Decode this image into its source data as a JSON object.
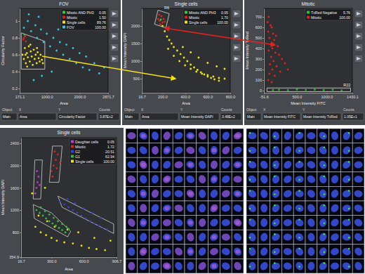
{
  "chart_data": [
    {
      "type": "scatter",
      "title": "FOV",
      "x_label": "Area",
      "y_label": "Circularity Factor",
      "xlim": [
        171.1,
        2871.7
      ],
      "xticks": [
        171.1,
        {
          "value": 1000,
          "label": "1000.0"
        },
        {
          "value": 2000,
          "label": "2000.0"
        },
        2871.7
      ],
      "ylim": [
        0.15,
        1.15
      ],
      "yticks": [
        0.2,
        0.4,
        0.6,
        0.8,
        1
      ],
      "series": [
        {
          "name": "Mitotic AND PH3",
          "percent": "0.05",
          "color": "#35c83a",
          "x": [
            320
          ],
          "values": [
            0.84
          ]
        },
        {
          "name": "Mitotic",
          "percent": "1.50",
          "color": "#e0231e",
          "x": [
            300,
            340,
            280,
            360
          ],
          "values": [
            0.8,
            0.82,
            0.78,
            0.76
          ]
        },
        {
          "name": "Single cells",
          "percent": "89.76",
          "color": "#f2e01a",
          "x": [
            260,
            300,
            330,
            360,
            390,
            420,
            450,
            480,
            510,
            540,
            570,
            600,
            630,
            660,
            690,
            720,
            750,
            780,
            810,
            850,
            880,
            400,
            500,
            700,
            350
          ],
          "values": [
            0.6,
            0.55,
            0.68,
            0.5,
            0.62,
            0.57,
            0.7,
            0.52,
            0.64,
            0.58,
            0.48,
            0.66,
            0.55,
            0.6,
            0.5,
            0.63,
            0.56,
            0.52,
            0.6,
            0.54,
            0.5,
            0.46,
            0.72,
            0.68,
            0.6
          ]
        },
        {
          "name": "FOV",
          "percent": "100.00",
          "color": "#35c8e0",
          "x": [
            300,
            420,
            520,
            650,
            700,
            820,
            900,
            1000,
            1100,
            1200,
            1300,
            1400,
            1500,
            1600,
            1700,
            1800,
            1900,
            2000,
            2100,
            2200,
            2300,
            2450,
            2600,
            2750,
            600,
            850,
            1150,
            450,
            750,
            1350
          ],
          "values": [
            0.92,
            1.0,
            0.88,
            0.95,
            0.8,
            0.9,
            0.75,
            0.85,
            0.7,
            0.8,
            0.65,
            0.75,
            0.6,
            0.72,
            0.55,
            0.68,
            0.5,
            0.62,
            0.45,
            0.58,
            0.42,
            0.5,
            0.38,
            0.45,
            0.3,
            0.35,
            0.4,
            1.08,
            1.05,
            0.9
          ]
        }
      ],
      "gates": [
        {
          "x": [
            220,
            940,
            940,
            220
          ],
          "y": [
            0.43,
            0.43,
            0.76,
            0.86
          ],
          "color": "#e0e0e0"
        }
      ],
      "controls": [
        {
          "label": "Object",
          "value": "Main"
        },
        {
          "label": "X",
          "value": "Area"
        },
        {
          "label": "Y",
          "value": "Circularity Factor"
        },
        {
          "label": "Counts",
          "value": "3.87E+2"
        }
      ]
    },
    {
      "type": "scatter",
      "title": "Single cells",
      "x_label": "Area",
      "y_label": "Mean Intensity DAPI",
      "xlim": [
        16.7,
        800
      ],
      "xticks": [
        16.7,
        {
          "value": 200,
          "label": "200.0"
        },
        {
          "value": 400,
          "label": "400.0"
        },
        {
          "value": 600,
          "label": "600.0"
        },
        {
          "value": 800,
          "label": "800.0"
        }
      ],
      "ylim": [
        100,
        2500
      ],
      "yticks": [
        500,
        1000,
        1500,
        2000
      ],
      "series": [
        {
          "name": "Mitotic AND PH3",
          "percent": "0.05",
          "color": "#35c83a",
          "x": [
            185
          ],
          "values": [
            2180
          ]
        },
        {
          "name": "Mitotic",
          "percent": "1.70",
          "color": "#e0231e",
          "x": [
            160,
            175,
            190,
            200,
            210,
            180,
            220,
            170
          ],
          "values": [
            2200,
            2150,
            2280,
            2100,
            2200,
            2050,
            2120,
            2320
          ]
        },
        {
          "name": "Single cells",
          "percent": "100.00",
          "color": "#f2e01a",
          "x": [
            200,
            220,
            240,
            260,
            280,
            300,
            330,
            360,
            390,
            420,
            450,
            480,
            510,
            540,
            570,
            600,
            630,
            660,
            700,
            250,
            300,
            350,
            400,
            450,
            500,
            550,
            600,
            650,
            700,
            750,
            380,
            450,
            520,
            600,
            680,
            750
          ],
          "values": [
            2000,
            1850,
            1700,
            1600,
            1500,
            1400,
            1300,
            1200,
            1100,
            1000,
            900,
            820,
            750,
            680,
            620,
            560,
            520,
            480,
            440,
            1350,
            1150,
            1000,
            880,
            780,
            700,
            640,
            600,
            560,
            520,
            500,
            1400,
            1250,
            1100,
            950,
            850,
            780
          ]
        }
      ],
      "gates": [
        {
          "label": "R6",
          "x": [
            130,
            230,
            260,
            160
          ],
          "y": [
            2050,
            1950,
            2350,
            2450
          ],
          "color": "#e0e0e0"
        }
      ],
      "controls": [
        {
          "label": "Object",
          "value": "Main"
        },
        {
          "label": "X",
          "value": "Area"
        },
        {
          "label": "Y",
          "value": "Mean Intensity DAPI"
        },
        {
          "label": "Counts",
          "value": "3.48E+2"
        }
      ]
    },
    {
      "type": "scatter",
      "title": "Mitotic",
      "x_label": "Mean Intensity FITC",
      "y_label": "Mean Intensity TxRed",
      "xlim": [
        -51.6,
        1430.1
      ],
      "xticks": [
        -51.6,
        {
          "value": 500,
          "label": "500.0"
        },
        {
          "value": 1000,
          "label": "1000.0"
        },
        1430.1
      ],
      "ylim": [
        -20,
        780
      ],
      "yticks": [
        0,
        100,
        200,
        300,
        400,
        500,
        600,
        700
      ],
      "series": [
        {
          "name": "TxRed Negative",
          "percent": "5.76",
          "color": "#30c030",
          "x": [
            100,
            200,
            350,
            500,
            650,
            800,
            950,
            1100,
            1250
          ],
          "values": [
            5,
            8,
            4,
            10,
            6,
            9,
            5,
            7,
            3
          ]
        },
        {
          "name": "Mitotic",
          "percent": "100.00",
          "color": "#e0231e",
          "x": [
            10,
            30,
            60,
            20,
            80,
            100,
            40,
            120,
            150,
            60,
            90,
            180,
            30,
            140,
            200,
            70,
            110,
            250,
            50,
            160,
            90,
            300,
            40,
            130,
            220,
            20,
            350,
            80
          ],
          "values": [
            650,
            700,
            620,
            560,
            600,
            540,
            500,
            480,
            520,
            440,
            400,
            420,
            380,
            360,
            340,
            320,
            280,
            300,
            250,
            230,
            200,
            260,
            160,
            140,
            180,
            100,
            200,
            80
          ]
        }
      ],
      "gates": [
        {
          "label": "R22",
          "x": [
            0,
            1400,
            1400,
            0
          ],
          "y": [
            -10,
            -10,
            25,
            25
          ],
          "color": "#e0e0e0"
        }
      ],
      "controls": [
        {
          "label": "Object",
          "value": "Main"
        },
        {
          "label": "X",
          "value": "Mean Intensity FITC"
        },
        {
          "label": "Y",
          "value": "Mean Intensity TxRed"
        },
        {
          "label": "Counts",
          "value": "1.05E+1"
        }
      ]
    },
    {
      "type": "scatter",
      "title": "Single cells",
      "x_label": "Area",
      "y_label": "Mean Intensity DAPI",
      "xlim": [
        16.7,
        906.7
      ],
      "xticks": [
        16.7,
        {
          "value": 300,
          "label": "300.0"
        },
        {
          "value": 600,
          "label": "600.0"
        },
        906.7
      ],
      "ylim": [
        354.9,
        2500
      ],
      "yticks": [
        354.9,
        800,
        1200,
        1600,
        2000,
        2400
      ],
      "series": [
        {
          "name": "Daughter cells",
          "percent": "0.05",
          "color": "#c03ad0",
          "x": [
            150,
            160,
            170,
            180,
            165,
            190
          ],
          "values": [
            1500,
            1600,
            1700,
            1800,
            1900,
            1650
          ]
        },
        {
          "name": "Mitotic",
          "percent": "1.72",
          "color": "#e0231e",
          "x": [
            300,
            320,
            340,
            360,
            310,
            350,
            380,
            330
          ],
          "values": [
            1900,
            2000,
            2100,
            2200,
            1800,
            1950,
            2050,
            2250
          ]
        },
        {
          "name": "G2",
          "percent": "20.51",
          "color": "#3a3fd0",
          "x": [
            380,
            420,
            460,
            500,
            540,
            580,
            620,
            660,
            700,
            740,
            780,
            820,
            450,
            520,
            600,
            680,
            760
          ],
          "values": [
            1350,
            1300,
            1250,
            1200,
            1150,
            1100,
            1050,
            1000,
            960,
            920,
            880,
            850,
            1400,
            1320,
            1230,
            1150,
            1060
          ]
        },
        {
          "name": "G1",
          "percent": "62.94",
          "color": "#2fbf3a",
          "x": [
            160,
            190,
            220,
            250,
            280,
            310,
            340,
            370,
            400,
            430,
            200,
            240,
            280,
            320,
            360,
            400,
            440,
            460
          ],
          "values": [
            1200,
            1150,
            1100,
            1050,
            1000,
            960,
            920,
            880,
            840,
            800,
            1250,
            1180,
            1120,
            1060,
            1000,
            950,
            900,
            860
          ]
        },
        {
          "name": "Single cells",
          "percent": "100.00",
          "color": "#f2e01a",
          "x": [
            150,
            200,
            250,
            300,
            350,
            420,
            500,
            580,
            650,
            720,
            800,
            180,
            260,
            330,
            450,
            550,
            700,
            850,
            120,
            240
          ],
          "values": [
            900,
            800,
            750,
            700,
            650,
            620,
            600,
            560,
            520,
            500,
            480,
            1100,
            1000,
            900,
            850,
            800,
            700,
            650,
            1500,
            1600
          ]
        }
      ],
      "gates": [
        {
          "x": [
            130,
            200,
            215,
            145
          ],
          "y": [
            1400,
            1400,
            2100,
            2100
          ],
          "color": "#d0d0d0"
        },
        {
          "x": [
            280,
            370,
            400,
            310
          ],
          "y": [
            1700,
            1700,
            2350,
            2350
          ],
          "color": "#d0d0d0"
        },
        {
          "x": [
            360,
            880,
            880,
            400
          ],
          "y": [
            1450,
            950,
            780,
            1250
          ],
          "color": "#d0d0d0"
        },
        {
          "x": [
            130,
            300,
            480,
            450,
            140
          ],
          "y": [
            1300,
            1150,
            820,
            720,
            1050
          ],
          "color": "#d0d0d0"
        }
      ]
    }
  ]
}
